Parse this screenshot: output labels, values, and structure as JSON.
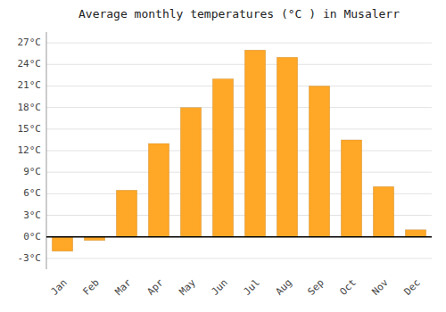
{
  "chart_data": {
    "type": "bar",
    "title": "Average monthly temperatures (°C ) in Musalerr",
    "categories": [
      "Jan",
      "Feb",
      "Mar",
      "Apr",
      "May",
      "Jun",
      "Jul",
      "Aug",
      "Sep",
      "Oct",
      "Nov",
      "Dec"
    ],
    "values": [
      -2.0,
      -0.5,
      6.5,
      13.0,
      18.0,
      22.0,
      26.0,
      25.0,
      21.0,
      13.5,
      7.0,
      1.0
    ],
    "color": "#FFA726",
    "ylim": [
      -4.5,
      28.5
    ],
    "yticks": [
      {
        "value": -3,
        "label": "-3°C"
      },
      {
        "value": 0,
        "label": "0°C"
      },
      {
        "value": 3,
        "label": "3°C"
      },
      {
        "value": 6,
        "label": "6°C"
      },
      {
        "value": 9,
        "label": "9°C"
      },
      {
        "value": 12,
        "label": "12°C"
      },
      {
        "value": 15,
        "label": "15°C"
      },
      {
        "value": 18,
        "label": "18°C"
      },
      {
        "value": 21,
        "label": "21°C"
      },
      {
        "value": 24,
        "label": "24°C"
      },
      {
        "value": 27,
        "label": "27°C"
      }
    ],
    "grid": true
  }
}
